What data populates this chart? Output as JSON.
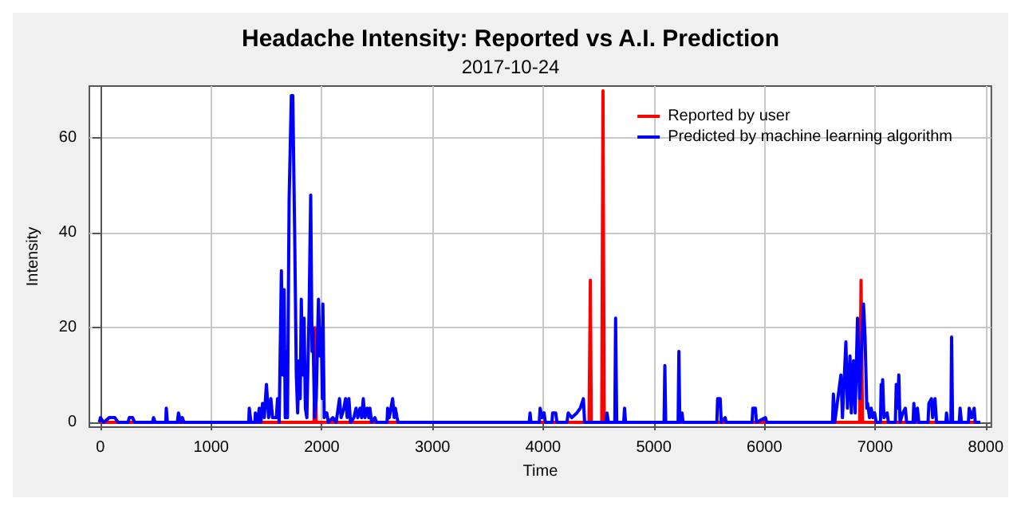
{
  "chart_data": {
    "type": "line",
    "title": "Headache Intensity: Reported vs A.I. Prediction",
    "subtitle": "2017-10-24",
    "xlabel": "Time",
    "ylabel": "Intensity",
    "xlim": [
      -100,
      8050
    ],
    "ylim": [
      -1,
      71
    ],
    "xticks": [
      0,
      1000,
      2000,
      3000,
      4000,
      5000,
      6000,
      7000,
      8000
    ],
    "yticks": [
      0,
      20,
      40,
      60
    ],
    "grid": true,
    "legend": "top right",
    "marker": "none",
    "line_style": "solid",
    "series": [
      {
        "name": "Reported by user",
        "color": "#ff0000",
        "x": [
          0,
          1930,
          1940,
          1950,
          4415,
          4427,
          4435,
          4530,
          4541,
          4552,
          6860,
          6873,
          6886,
          7950
        ],
        "values": [
          0,
          0,
          20,
          0,
          0,
          30,
          0,
          0,
          70,
          0,
          0,
          30,
          0,
          0
        ]
      },
      {
        "name": "Predicted by machine learning algorithm",
        "color": "#0000ff",
        "x": [
          -10,
          0,
          30,
          80,
          130,
          160,
          250,
          260,
          290,
          310,
          470,
          480,
          495,
          590,
          595,
          605,
          695,
          705,
          725,
          740,
          755,
          1340,
          1345,
          1360,
          1395,
          1400,
          1420,
          1435,
          1450,
          1465,
          1480,
          1500,
          1520,
          1540,
          1555,
          1590,
          1600,
          1615,
          1635,
          1648,
          1660,
          1670,
          1680,
          1690,
          1705,
          1725,
          1738,
          1755,
          1770,
          1782,
          1795,
          1805,
          1815,
          1828,
          1840,
          1852,
          1865,
          1885,
          1900,
          1912,
          1920,
          1935,
          1950,
          1970,
          1985,
          1995,
          2005,
          2010,
          2022,
          2045,
          2060,
          2100,
          2130,
          2160,
          2175,
          2200,
          2215,
          2230,
          2245,
          2260,
          2290,
          2310,
          2325,
          2345,
          2360,
          2375,
          2390,
          2410,
          2425,
          2435,
          2450,
          2480,
          2495,
          2590,
          2595,
          2610,
          2640,
          2655,
          2665,
          2680,
          2690,
          3875,
          3882,
          3890,
          3965,
          3973,
          3990,
          4009,
          4020,
          4080,
          4086,
          4114,
          4125,
          4215,
          4227,
          4259,
          4305,
          4336,
          4364,
          4375,
          4570,
          4577,
          4590,
          4648,
          4655,
          4665,
          4728,
          4736,
          4745,
          5093,
          5100,
          5108,
          5220,
          5227,
          5235,
          5255,
          5265,
          5570,
          5577,
          5600,
          5610,
          5645,
          5655,
          5888,
          5895,
          5918,
          5928,
          6009,
          6020,
          6615,
          6623,
          6635,
          6691,
          6705,
          6736,
          6750,
          6773,
          6785,
          6805,
          6820,
          6841,
          6860,
          6895,
          6909,
          6925,
          6932,
          6950,
          6964,
          6980,
          6995,
          7010,
          7048,
          7055,
          7062,
          7068,
          7080,
          7109,
          7120,
          7183,
          7191,
          7205,
          7214,
          7225,
          7250,
          7273,
          7285,
          7343,
          7350,
          7360,
          7382,
          7395,
          7478,
          7486,
          7509,
          7520,
          7541,
          7555,
          7640,
          7645,
          7655,
          7685,
          7691,
          7700,
          7760,
          7768,
          7780,
          7843,
          7850,
          7872,
          7895,
          7905,
          7950
        ],
        "values": [
          0,
          1,
          0,
          1,
          1,
          0,
          0,
          1,
          1,
          0,
          0,
          1,
          0,
          0,
          3,
          0,
          0,
          2,
          0,
          1,
          0,
          0,
          3,
          0,
          0,
          2,
          0,
          3,
          0,
          4,
          1,
          8,
          1,
          5,
          1,
          1,
          5,
          0,
          32,
          10,
          28,
          1,
          15,
          1,
          47,
          69,
          69,
          40,
          10,
          2,
          13,
          5,
          26,
          10,
          22,
          3,
          1,
          23,
          48,
          15,
          20,
          1,
          5,
          26,
          14,
          20,
          5,
          25,
          1,
          2,
          0,
          1,
          0,
          5,
          1,
          3,
          5,
          1,
          5,
          0,
          1,
          3,
          1,
          3,
          1,
          5,
          1,
          3,
          1,
          3,
          0,
          1,
          0,
          0,
          3,
          1,
          5,
          1,
          3,
          1,
          0,
          0,
          2,
          0,
          0,
          3,
          1,
          2,
          0,
          0,
          2,
          2,
          0,
          0,
          2,
          1,
          2,
          3,
          5,
          0,
          0,
          2,
          0,
          0,
          22,
          0,
          0,
          3,
          0,
          0,
          12,
          0,
          0,
          15,
          0,
          2,
          0,
          0,
          5,
          5,
          0,
          1,
          0,
          0,
          3,
          3,
          0,
          1,
          0,
          0,
          6,
          0,
          10,
          1,
          17,
          3,
          14,
          2,
          13,
          2,
          22,
          5,
          25,
          18,
          3,
          4,
          1,
          3,
          1,
          2,
          0,
          0,
          8,
          3,
          9,
          1,
          2,
          0,
          0,
          8,
          3,
          10,
          0,
          2,
          3,
          0,
          0,
          4,
          0,
          3,
          0,
          0,
          4,
          5,
          1,
          5,
          0,
          0,
          2,
          0,
          0,
          18,
          0,
          0,
          3,
          0,
          0,
          3,
          1,
          3,
          0,
          0
        ]
      }
    ]
  }
}
